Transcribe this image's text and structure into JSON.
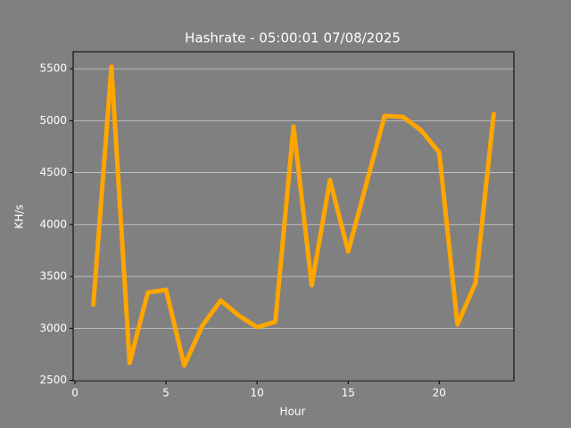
{
  "chart_data": {
    "type": "line",
    "title": "Hashrate - 05:00:01 07/08/2025",
    "x_label": "Hour",
    "y_label": "KH/s",
    "x": [
      1,
      2,
      3,
      4,
      5,
      6,
      7,
      8,
      9,
      10,
      11,
      12,
      13,
      14,
      15,
      16,
      17,
      18,
      19,
      20,
      21,
      22,
      23
    ],
    "series": [
      {
        "color": "#ffa500",
        "values": [
          3210,
          5520,
          2668,
          3346,
          3372,
          2642,
          3028,
          3269,
          3123,
          3011,
          3063,
          4943,
          3415,
          4428,
          3741,
          4393,
          5046,
          5037,
          4908,
          4694,
          3037,
          3440,
          5080
        ]
      }
    ],
    "xlim": [
      -0.1,
      24.1
    ],
    "xticks": [
      0,
      5,
      10,
      15,
      20
    ],
    "ylim": [
      2496,
      5664
    ],
    "yticks": [
      2500,
      3000,
      3500,
      4000,
      4500,
      5000,
      5500
    ],
    "grid": true
  }
}
